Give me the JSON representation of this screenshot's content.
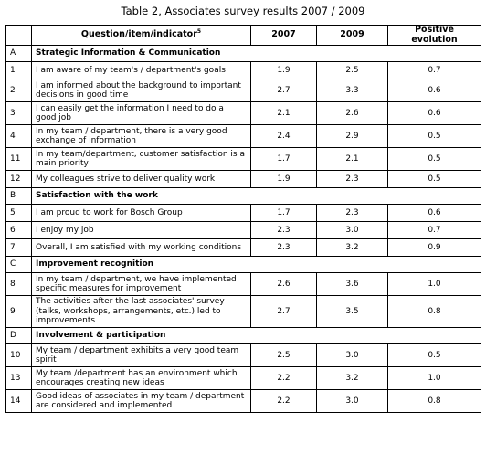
{
  "title": "Table 2, Associates survey results 2007 / 2009",
  "headers": {
    "number": "",
    "question": "Question/item/indicator",
    "question_sup": "5",
    "year1": "2007",
    "year2": "2009",
    "evolution": "Positive evolution"
  },
  "sections": [
    {
      "letter": "A",
      "title": "Strategic Information & Communication",
      "rows": [
        {
          "num": "1",
          "text": "I am aware of my team's / department's goals",
          "v2007": "1.9",
          "v2009": "2.5",
          "evo": "0.7"
        },
        {
          "num": "2",
          "text": "I am informed about the background to important decisions in good time",
          "v2007": "2.7",
          "v2009": "3.3",
          "evo": "0.6"
        },
        {
          "num": "3",
          "text": "I can easily get the information I need to do a good job",
          "v2007": "2.1",
          "v2009": "2.6",
          "evo": "0.6"
        },
        {
          "num": "4",
          "text": "In my team / department, there is a very good exchange of information",
          "v2007": "2.4",
          "v2009": "2.9",
          "evo": "0.5"
        },
        {
          "num": "11",
          "text": "In my team/department, customer satisfaction is a main priority",
          "v2007": "1.7",
          "v2009": "2.1",
          "evo": "0.5"
        },
        {
          "num": "12",
          "text": "My colleagues strive to deliver quality work",
          "v2007": "1.9",
          "v2009": "2.3",
          "evo": "0.5"
        }
      ]
    },
    {
      "letter": "B",
      "title": "Satisfaction with the work",
      "rows": [
        {
          "num": "5",
          "text": "I am proud to work for Bosch Group",
          "v2007": "1.7",
          "v2009": "2.3",
          "evo": "0.6"
        },
        {
          "num": "6",
          "text": "I enjoy my job",
          "v2007": "2.3",
          "v2009": "3.0",
          "evo": "0.7"
        },
        {
          "num": "7",
          "text": "Overall, I am satisfied with my working conditions",
          "v2007": "2.3",
          "v2009": "3.2",
          "evo": "0.9"
        }
      ]
    },
    {
      "letter": "C",
      "title": "Improvement recognition",
      "rows": [
        {
          "num": "8",
          "text": "In my team / department, we have implemented specific measures for improvement",
          "v2007": "2.6",
          "v2009": "3.6",
          "evo": "1.0"
        },
        {
          "num": "9",
          "text": "The activities after the last associates' survey (talks, workshops, arrangements, etc.) led to improvements",
          "v2007": "2.7",
          "v2009": "3.5",
          "evo": "0.8"
        }
      ]
    },
    {
      "letter": "D",
      "title": "Involvement & participation",
      "rows": [
        {
          "num": "10",
          "text": "My team / department exhibits a very good team spirit",
          "v2007": "2.5",
          "v2009": "3.0",
          "evo": "0.5"
        },
        {
          "num": "13",
          "text": "My team /department has an environment which encourages creating new ideas",
          "v2007": "2.2",
          "v2009": "3.2",
          "evo": "1.0"
        },
        {
          "num": "14",
          "text": "Good ideas of associates in my team / department are considered and implemented",
          "v2007": "2.2",
          "v2009": "3.0",
          "evo": "0.8"
        }
      ]
    }
  ]
}
